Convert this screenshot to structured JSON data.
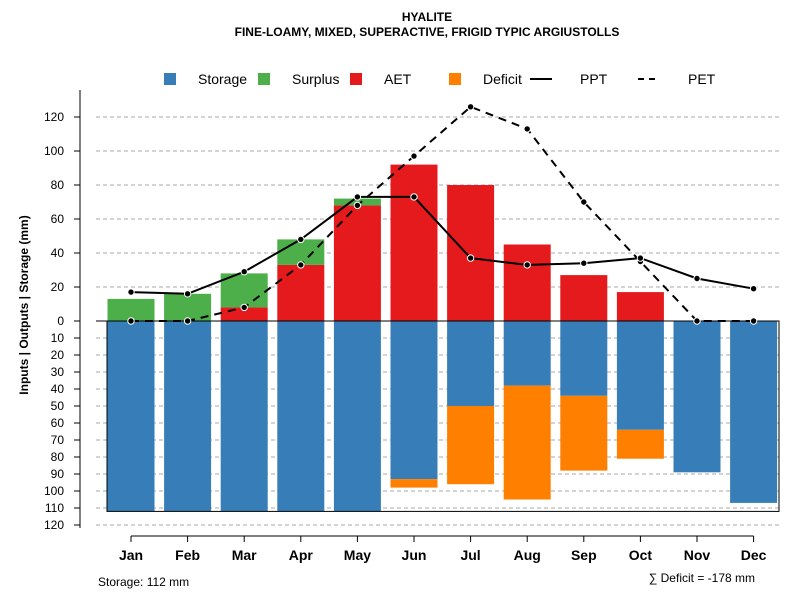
{
  "chart_data": {
    "type": "bar",
    "title": "HYALITE",
    "subtitle": "FINE-LOAMY, MIXED, SUPERACTIVE, FRIGID TYPIC ARGIUSTOLLS",
    "ylabel": "Inputs | Outputs | Storage    (mm)",
    "upper_ticks": [
      "120",
      "100",
      "80",
      "60",
      "40",
      "20",
      "0"
    ],
    "lower_ticks": [
      "10",
      "20",
      "30",
      "40",
      "50",
      "60",
      "70",
      "80",
      "90",
      "100",
      "110",
      "120"
    ],
    "categories": [
      "Jan",
      "Feb",
      "Mar",
      "Apr",
      "May",
      "Jun",
      "Jul",
      "Aug",
      "Sep",
      "Oct",
      "Nov",
      "Dec"
    ],
    "upper_ylim": [
      0,
      130
    ],
    "lower_ylim": [
      0,
      120
    ],
    "legend": {
      "placement": "top",
      "items": [
        {
          "label": "Storage",
          "kind": "box",
          "color": "#377eb8"
        },
        {
          "label": "Surplus",
          "kind": "box",
          "color": "#4daf4a"
        },
        {
          "label": "AET",
          "kind": "box",
          "color": "#e41a1c"
        },
        {
          "label": "Deficit",
          "kind": "box",
          "color": "#ff7f00"
        },
        {
          "label": "PPT",
          "kind": "solid-line",
          "color": "#000000"
        },
        {
          "label": "PET",
          "kind": "dashed-line",
          "color": "#000000"
        }
      ]
    },
    "colors": {
      "storage": "#377eb8",
      "surplus": "#4daf4a",
      "aet": "#e41a1c",
      "deficit": "#ff7f00",
      "grid": "#aaaaaa"
    },
    "series": [
      {
        "name": "AET",
        "values": [
          0,
          0,
          8,
          33,
          68,
          92,
          80,
          45,
          27,
          17,
          0,
          0
        ]
      },
      {
        "name": "Surplus",
        "values": [
          13,
          16,
          20,
          15,
          4,
          0,
          0,
          0,
          0,
          0,
          0,
          0
        ]
      },
      {
        "name": "Storage",
        "values": [
          112,
          112,
          112,
          112,
          112,
          93,
          50,
          38,
          44,
          64,
          89,
          107
        ]
      },
      {
        "name": "Deficit",
        "values": [
          0,
          0,
          0,
          0,
          0,
          5,
          46,
          67,
          44,
          17,
          0,
          0
        ]
      },
      {
        "name": "PPT",
        "values": [
          17,
          16,
          29,
          48,
          73,
          73,
          37,
          33,
          34,
          37,
          25,
          19
        ]
      },
      {
        "name": "PET",
        "values": [
          0,
          0,
          8,
          33,
          68,
          97,
          126,
          113,
          70,
          35,
          0,
          0
        ]
      }
    ],
    "storage_capacity": 112,
    "footer_left": "Storage: 112 mm",
    "footer_right": "∑ Deficit = -178 mm"
  }
}
